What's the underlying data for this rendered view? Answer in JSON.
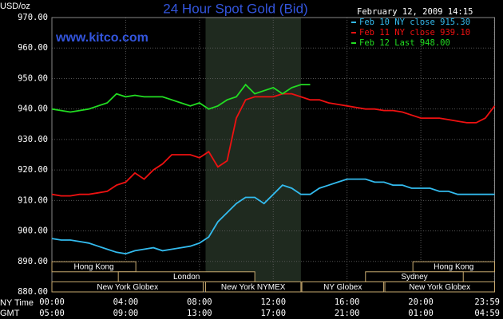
{
  "chart_data": {
    "type": "line",
    "title": "24 Hour Spot Gold (Bid)",
    "unit_label": "USD/oz",
    "watermark": "www.kitco.com",
    "timestamp": "February 12, 2009 14:15",
    "x_axis_labels": [
      "NY Time",
      "GMT"
    ],
    "x": [
      0,
      0.5,
      1,
      1.5,
      2,
      2.5,
      3,
      3.5,
      4,
      4.5,
      5,
      5.5,
      6,
      6.5,
      7,
      7.5,
      8,
      8.5,
      9,
      9.5,
      10,
      10.5,
      11,
      11.5,
      12,
      12.5,
      13,
      13.5,
      14,
      14.5,
      15,
      15.5,
      16,
      16.5,
      17,
      17.5,
      18,
      18.5,
      19,
      19.5,
      20,
      20.5,
      21,
      21.5,
      22,
      22.5,
      23,
      23.5,
      24
    ],
    "series": [
      {
        "name": "Feb 10 NY close 915.30",
        "color": "#33bbee",
        "values": [
          897.5,
          897,
          897,
          896.5,
          896,
          895,
          894,
          893,
          892.5,
          893.5,
          894,
          894.5,
          893.5,
          894,
          894.5,
          895,
          896,
          898,
          903,
          906,
          909,
          911,
          911,
          909,
          912,
          915,
          914,
          912,
          912,
          914,
          915,
          916,
          917,
          917,
          917,
          916,
          916,
          915,
          915,
          914,
          914,
          914,
          913,
          913,
          912,
          912,
          912,
          912,
          912
        ]
      },
      {
        "name": "Feb 11 NY close 939.10",
        "color": "#ee1111",
        "values": [
          912,
          911.5,
          911.5,
          912,
          912,
          912.5,
          913,
          915,
          916,
          919,
          917,
          920,
          922,
          925,
          925,
          925,
          924,
          926,
          921,
          923,
          937,
          943,
          944,
          944,
          944,
          945,
          945,
          944,
          943,
          943,
          942,
          941.5,
          941,
          940.5,
          940,
          940,
          939.5,
          939.5,
          939,
          938,
          937,
          937,
          937,
          936.5,
          936,
          935.5,
          935.5,
          937,
          941
        ]
      },
      {
        "name": "Feb 12 Last 948.00",
        "color": "#22dd22",
        "values": [
          940,
          939.5,
          939,
          939.5,
          940,
          941,
          942,
          945,
          944,
          944.5,
          944,
          944,
          944,
          943,
          942,
          941,
          942,
          940,
          941,
          943,
          944,
          948,
          945,
          946,
          947,
          945,
          947,
          948,
          948,
          null,
          null,
          null,
          null,
          null,
          null,
          null,
          null,
          null,
          null,
          null,
          null,
          null,
          null,
          null,
          null,
          null,
          null,
          null,
          null
        ]
      }
    ],
    "xlim": [
      0,
      24
    ],
    "xticks": [
      {
        "value": 0,
        "label": "00:00"
      },
      {
        "value": 4,
        "label": "04:00"
      },
      {
        "value": 8,
        "label": "08:00"
      },
      {
        "value": 12,
        "label": "12:00"
      },
      {
        "value": 16,
        "label": "16:00"
      },
      {
        "value": 20,
        "label": "20:00"
      },
      {
        "value": 23.983,
        "label": "23:59"
      }
    ],
    "gmt_tick_labels": [
      "05:00",
      "09:00",
      "13:00",
      "17:00",
      "21:00",
      "01:00",
      "04:59"
    ],
    "ylim": [
      880,
      970
    ],
    "yticks": [
      {
        "value": 880,
        "label": "880.00"
      },
      {
        "value": 890,
        "label": "890.00"
      },
      {
        "value": 900,
        "label": "900.00"
      },
      {
        "value": 910,
        "label": "910.00"
      },
      {
        "value": 920,
        "label": "920.00"
      },
      {
        "value": 930,
        "label": "930.00"
      },
      {
        "value": 940,
        "label": "940.00"
      },
      {
        "value": 950,
        "label": "950.00"
      },
      {
        "value": 960,
        "label": "960.00"
      },
      {
        "value": 970,
        "label": "970.00"
      }
    ],
    "grid": true,
    "sessions": [
      [
        {
          "name": "Hong Kong",
          "start": 0,
          "end": 4.55
        },
        {
          "name": "Hong Kong",
          "start": 19.57,
          "end": 24
        }
      ],
      [
        {
          "name": "London",
          "start": 3.6,
          "end": 11.0
        },
        {
          "name": "Sydney",
          "start": 17.0,
          "end": 22.3
        }
      ],
      [
        {
          "name": "New York Globex",
          "start": 0,
          "end": 8.2
        },
        {
          "name": "New York NYMEX",
          "start": 8.33,
          "end": 13.5
        },
        {
          "name": "NY Globex",
          "start": 13.55,
          "end": 17.98
        },
        {
          "name": "New York Globex",
          "start": 18.05,
          "end": 24
        }
      ]
    ],
    "shaded_session": [
      2,
      1
    ]
  }
}
